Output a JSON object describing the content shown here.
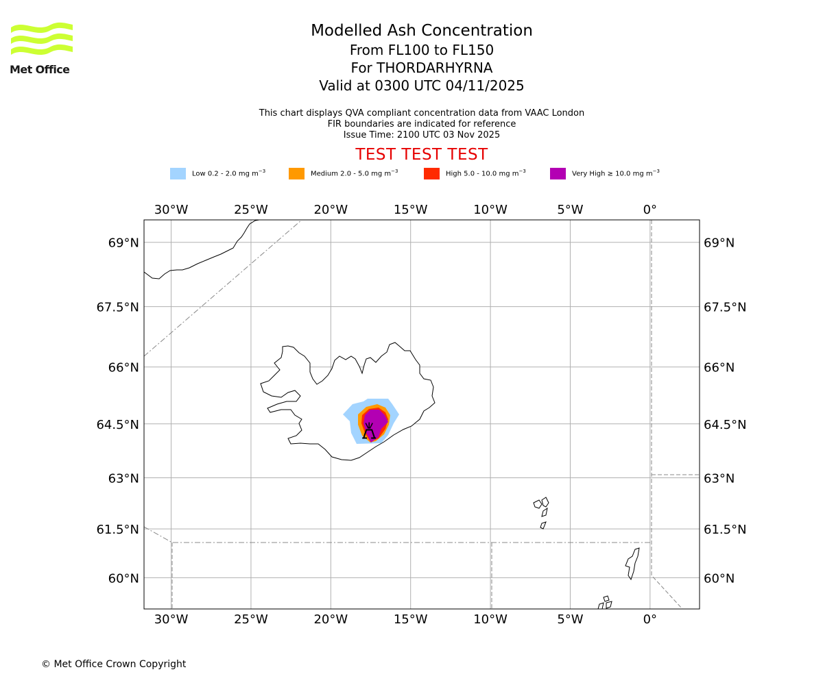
{
  "logo": {
    "text": "Met Office",
    "color": "#ccff33"
  },
  "header": {
    "title": "Modelled Ash Concentration",
    "levels": "From FL100 to FL150",
    "volcano": "For THORDARHYRNA",
    "valid": "Valid at 0300 UTC 04/11/2025"
  },
  "notes": {
    "line1": "This chart displays QVA compliant concentration data from VAAC London",
    "line2": "FIR boundaries are indicated for reference",
    "line3": "Issue Time: 2100 UTC 03 Nov 2025"
  },
  "banner": "TEST TEST TEST",
  "legend": [
    {
      "label": "Low 0.2 - 2.0 mg m",
      "exp": "−3",
      "color": "#a3d4ff"
    },
    {
      "label": "Medium 2.0 - 5.0 mg m",
      "exp": "−3",
      "color": "#ff9900"
    },
    {
      "label": "High 5.0 - 10.0 mg m",
      "exp": "−3",
      "color": "#ff2b00"
    },
    {
      "label": "Very High  ≥  10.0 mg m",
      "exp": "−3",
      "color": "#b300b3"
    }
  ],
  "map": {
    "lon_range": [
      -31.7,
      3.1
    ],
    "lat_range": [
      59.0,
      69.5
    ],
    "lon_ticks": [
      {
        "value": -30,
        "label": "30°W"
      },
      {
        "value": -25,
        "label": "25°W"
      },
      {
        "value": -20,
        "label": "20°W"
      },
      {
        "value": -15,
        "label": "15°W"
      },
      {
        "value": -10,
        "label": "10°W"
      },
      {
        "value": -5,
        "label": "5°W"
      },
      {
        "value": 0,
        "label": "0°"
      }
    ],
    "lat_ticks": [
      {
        "value": 69,
        "label": "69°N"
      },
      {
        "value": 67.5,
        "label": "67.5°N"
      },
      {
        "value": 66,
        "label": "66°N"
      },
      {
        "value": 64.5,
        "label": "64.5°N"
      },
      {
        "value": 63,
        "label": "63°N"
      },
      {
        "value": 61.5,
        "label": "61.5°N"
      },
      {
        "value": 60,
        "label": "60°N"
      }
    ],
    "volcano": {
      "name": "THORDARHYRNA",
      "lon": -17.6,
      "lat": 64.3
    }
  },
  "copyright": "© Met Office Crown Copyright"
}
